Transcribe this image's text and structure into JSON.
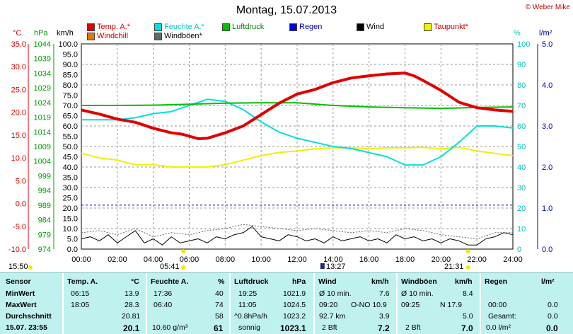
{
  "title": "Montag, 15.07.2013",
  "copyright": "© Weber Mike",
  "legend": [
    {
      "label": "Temp. A.*",
      "color": "#e00000"
    },
    {
      "label": "Feuchte A.*",
      "color": "#00e0e0"
    },
    {
      "label": "Luftdruck",
      "color": "#00c000"
    },
    {
      "label": "Regen",
      "color": "#0000e0"
    },
    {
      "label": "Wind",
      "color": "#000000"
    },
    {
      "label": "Taupunkt*",
      "color": "#f0f000"
    },
    {
      "label": "Windchill",
      "color": "#f07000"
    },
    {
      "label": "Windböen*",
      "color": "#507070"
    }
  ],
  "axis_units": {
    "temp": "°C",
    "pressure": "hPa",
    "wind": "km/h",
    "humidity": "%",
    "rain": "l/m²"
  },
  "events": {
    "sunrise_marker": "15:50",
    "sunrise": "05:41",
    "noon": "13:27",
    "sunset": "21:31"
  },
  "chart_data": {
    "type": "line",
    "x_ticks": [
      "00:00",
      "02:00",
      "04:00",
      "06:00",
      "08:00",
      "10:00",
      "12:00",
      "14:00",
      "16:00",
      "18:00",
      "20:00",
      "22:00",
      "24:00"
    ],
    "y_temp_ticks": [
      "35.0",
      "30.0",
      "25.0",
      "20.0",
      "15.0",
      "10.0",
      "5.0",
      "0.0",
      "-5.0",
      "-10.0"
    ],
    "y_pressure_ticks": [
      "1044",
      "1039",
      "1034",
      "1029",
      "1024",
      "1019",
      "1014",
      "1009",
      "1004",
      "999",
      "994",
      "989",
      "984",
      "979",
      "974"
    ],
    "y_wind_ticks": [
      "100.0",
      "95.0",
      "90.0",
      "85.0",
      "80.0",
      "75.0",
      "70.0",
      "65.0",
      "60.0",
      "55.0",
      "50.0",
      "45.0",
      "40.0",
      "35.0",
      "30.0",
      "25.0",
      "20.0",
      "15.0",
      "10.0",
      "5.0",
      "0.0"
    ],
    "y_humidity_ticks": [
      "100",
      "90",
      "80",
      "70",
      "60",
      "50",
      "40",
      "30",
      "20",
      "10",
      "0"
    ],
    "y_rain_ticks": [
      "5.0",
      "4.0",
      "3.0",
      "2.0",
      "1.0",
      "0.0"
    ],
    "ylim_temp": [
      -10,
      35
    ],
    "ylim_wind": [
      0,
      100
    ],
    "series": [
      {
        "name": "Temp. A.*",
        "color": "#e00000",
        "scale": "temp",
        "x": [
          0,
          1,
          2,
          3,
          4,
          5,
          5.6,
          6.5,
          7,
          8,
          9,
          10,
          11,
          12,
          13,
          14,
          15,
          16,
          17,
          18,
          18.5,
          19,
          20,
          21,
          22,
          23,
          24
        ],
        "values": [
          20.5,
          19.6,
          18.5,
          17.8,
          16.5,
          15.5,
          15.2,
          14.2,
          14.3,
          15.5,
          17.0,
          19.5,
          22.0,
          24.0,
          25.0,
          26.5,
          27.5,
          28.0,
          28.4,
          28.6,
          28.0,
          27.0,
          24.8,
          22.2,
          21.0,
          20.5,
          20.2
        ]
      },
      {
        "name": "Feuchte A.*",
        "color": "#00e0e0",
        "scale": "humidity",
        "x": [
          0,
          1,
          2,
          3,
          4,
          5,
          6,
          7,
          8,
          9,
          10,
          11,
          12,
          13,
          14,
          15,
          16,
          17,
          18,
          19,
          20,
          21,
          22,
          23,
          24
        ],
        "values": [
          63,
          63,
          63,
          64,
          66,
          67,
          70,
          73,
          72,
          68,
          62,
          57,
          54,
          52,
          50,
          49,
          47,
          45,
          41,
          41,
          45,
          52,
          60,
          60,
          59
        ]
      },
      {
        "name": "Luftdruck",
        "color": "#00c000",
        "scale": "pressure",
        "x": [
          0,
          2,
          4,
          6,
          8,
          10,
          12,
          14,
          16,
          18,
          20,
          22,
          24
        ],
        "values": [
          1023.0,
          1023.0,
          1023.1,
          1023.4,
          1023.8,
          1023.9,
          1023.9,
          1023.0,
          1022.5,
          1022.2,
          1022.0,
          1022.3,
          1022.5
        ]
      },
      {
        "name": "Taupunkt*",
        "color": "#f0f000",
        "scale": "temp",
        "x": [
          0,
          1,
          2,
          3,
          4,
          5,
          6,
          7,
          8,
          9,
          10,
          11,
          12,
          13,
          14,
          15,
          16,
          17,
          18,
          19,
          20,
          21,
          22,
          23,
          24
        ],
        "values": [
          11.0,
          10.0,
          9.5,
          8.5,
          8.5,
          8.0,
          8.0,
          8.0,
          8.5,
          9.5,
          10.5,
          11.2,
          11.5,
          12.0,
          12.2,
          12.2,
          12.0,
          12.2,
          12.2,
          12.3,
          12.0,
          12.3,
          11.5,
          11.0,
          10.5
        ]
      },
      {
        "name": "Wind",
        "color": "#000000",
        "scale": "wind",
        "x": [
          0,
          0.5,
          1,
          1.5,
          2,
          2.5,
          3,
          3.5,
          4,
          4.5,
          5,
          5.5,
          6,
          6.5,
          7,
          7.5,
          8,
          8.5,
          9,
          9.5,
          10,
          10.5,
          11,
          11.5,
          12,
          12.5,
          13,
          13.5,
          14,
          14.5,
          15,
          15.5,
          16,
          16.5,
          17,
          17.5,
          18,
          18.5,
          19,
          19.5,
          20,
          20.5,
          21,
          21.5,
          22,
          22.5,
          23,
          23.5,
          24
        ],
        "values": [
          5,
          6,
          4,
          7,
          3,
          6,
          9,
          3,
          5,
          2,
          6,
          3,
          4,
          5,
          3,
          6,
          5,
          7,
          8,
          11,
          6,
          5,
          4,
          7,
          6,
          4,
          5,
          3,
          6,
          4,
          5,
          6,
          4,
          5,
          3,
          7,
          5,
          6,
          4,
          5,
          3,
          5,
          4,
          2,
          2,
          5,
          6,
          8,
          7
        ]
      },
      {
        "name": "Windböen*",
        "color": "#507070",
        "scale": "wind",
        "x": [
          0,
          1,
          2,
          3,
          4,
          5,
          6,
          7,
          8,
          9,
          10,
          11,
          12,
          13,
          14,
          15,
          16,
          17,
          18,
          19,
          20,
          21,
          22,
          23,
          24
        ],
        "values": [
          8,
          9,
          7,
          10,
          6,
          8,
          7,
          9,
          10,
          12,
          11,
          10,
          9,
          10,
          9,
          8,
          9,
          8,
          10,
          9,
          7,
          6,
          5,
          8,
          8
        ]
      },
      {
        "name": "Regen",
        "color": "#0000e0",
        "scale": "temp",
        "x": [
          0,
          24
        ],
        "values": [
          0,
          0
        ]
      }
    ]
  },
  "table": {
    "header": {
      "sensor": "Sensor",
      "temp": "Temp. A.",
      "temp_unit": "°C",
      "hum": "Feuchte A.",
      "hum_unit": "%",
      "press": "Luftdruck",
      "press_unit": "hPa",
      "wind": "Wind",
      "wind_unit": "km/h",
      "gust": "Windböen",
      "gust_unit": "km/h",
      "rain": "Regen",
      "rain_unit": "l/m²"
    },
    "rows": [
      {
        "label": "MinWert",
        "temp_t": "06:15",
        "temp_v": "13.9",
        "hum_t": "17:36",
        "hum_v": "40",
        "press_t": "19:25",
        "press_v": "1021.9",
        "wind_t": "Ø 10 min.",
        "wind_v": "7.6",
        "gust_t": "Ø 10 min.",
        "gust_v": "8.4",
        "rain_t": "",
        "rain_v": ""
      },
      {
        "label": "MaxWert",
        "temp_t": "18:05",
        "temp_v": "28.3",
        "hum_t": "06:40",
        "hum_v": "74",
        "press_t": "11:05",
        "press_v": "1024.5",
        "wind_t": "09:20",
        "wind_d": "O-NO 10.9",
        "wind_v": "",
        "gust_t": "09:25",
        "gust_d": "N 17.9",
        "gust_v": "",
        "rain_t": "00:00",
        "rain_v": "0.0"
      },
      {
        "label": "Durchschnitt",
        "temp_t": "",
        "temp_v": "20.81",
        "hum_t": "",
        "hum_v": "58",
        "press_t": "^0.8hPa/h",
        "press_v": "1023.2",
        "wind_t": "92.7 km",
        "wind_v": "3.9",
        "gust_t": "",
        "gust_v": "5.0",
        "rain_t": "Gesamt:",
        "rain_v": "0.0"
      },
      {
        "label": "15.07. 23:55",
        "temp_t": "",
        "temp_v": "20.1",
        "hum_t": "10.60 g/m³",
        "hum_v": "61",
        "press_t": "sonnig",
        "press_v": "1023.1",
        "wind_t": "2 Bft",
        "wind_v": "7.2",
        "gust_t": "2 Bft",
        "gust_v": "7.0",
        "rain_t": "0.0 l/m²",
        "rain_v": "0.0"
      }
    ]
  }
}
